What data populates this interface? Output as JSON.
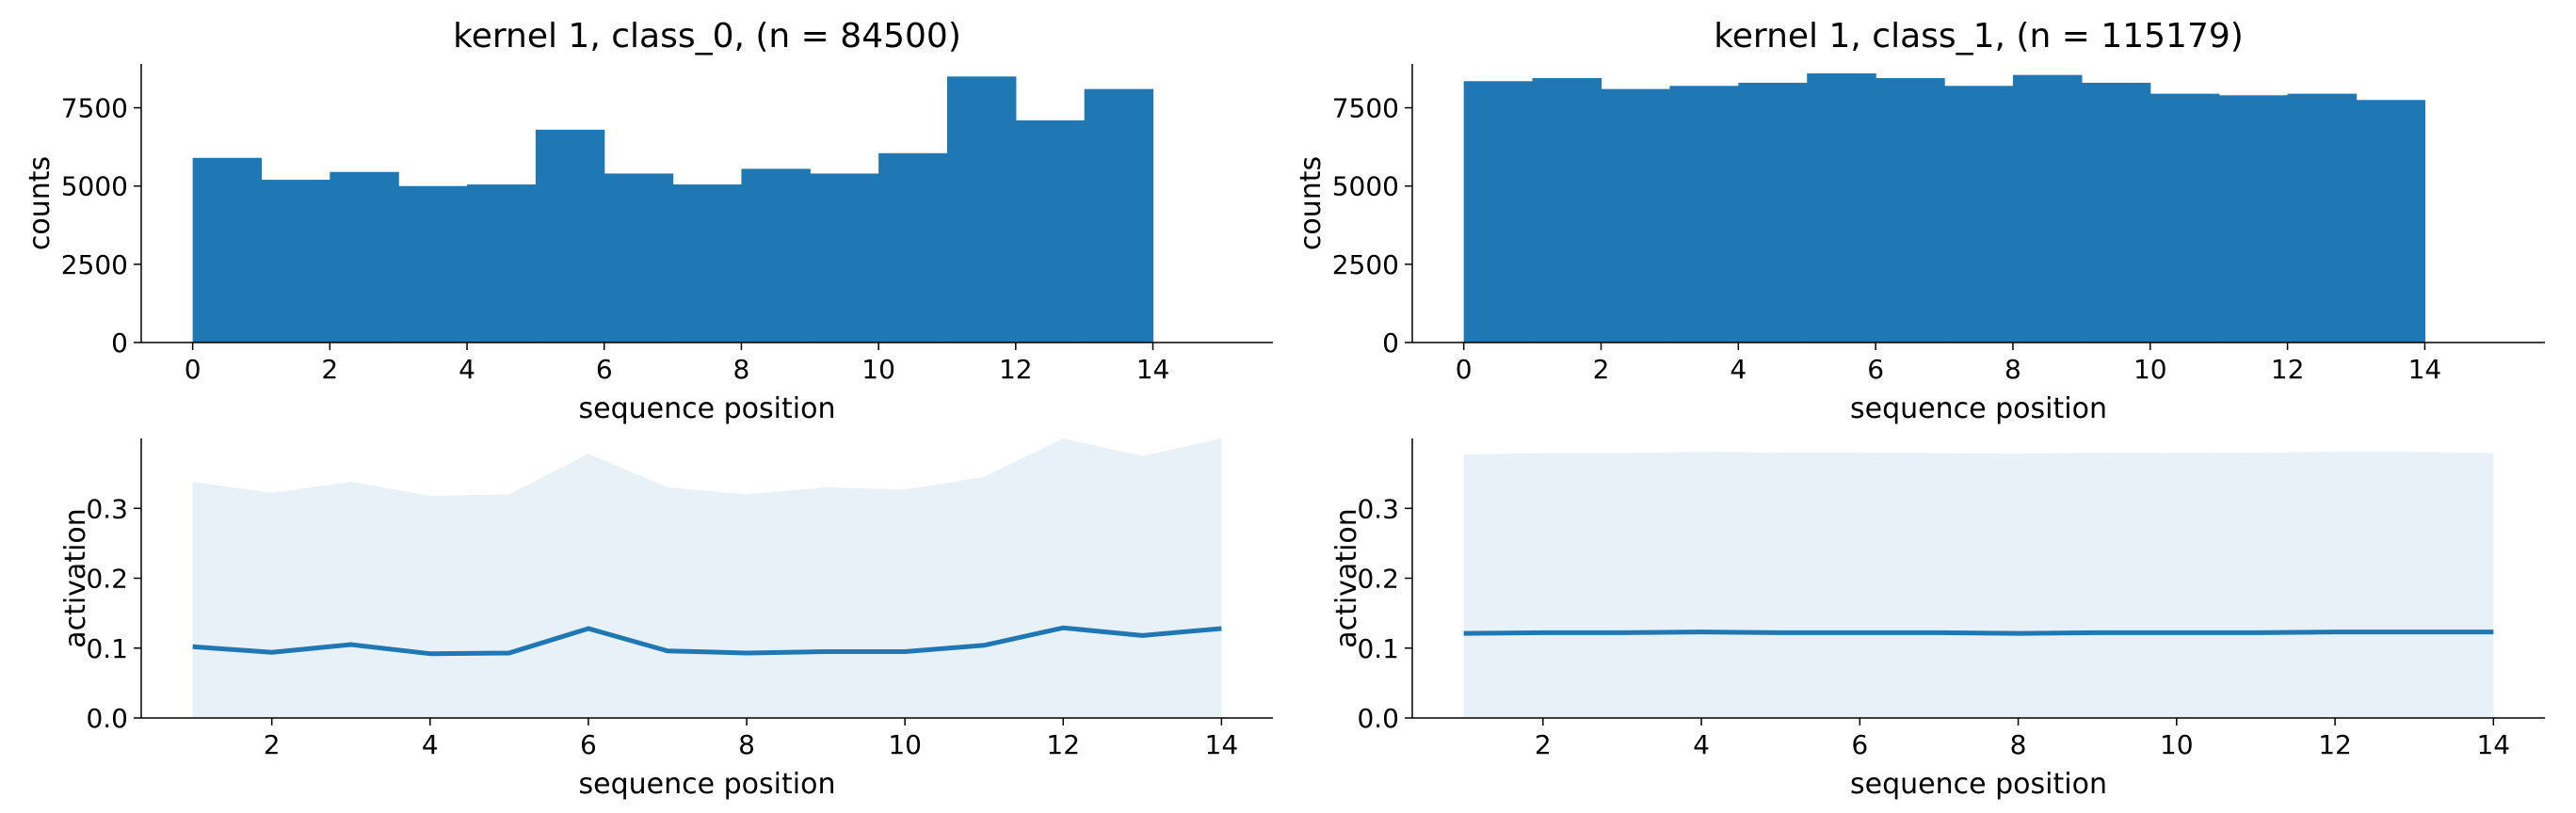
{
  "chart_data": [
    {
      "type": "bar",
      "title": "kernel 1, class_0, (n = 84500)",
      "xlabel": "sequence position",
      "ylabel": "counts",
      "xlim": [
        -0.75,
        15.75
      ],
      "ylim": [
        0,
        8900
      ],
      "xticks": [
        0,
        2,
        4,
        6,
        8,
        10,
        12,
        14
      ],
      "yticks": [
        0,
        2500,
        5000,
        7500
      ],
      "bin_edges": [
        0,
        1,
        2,
        3,
        4,
        5,
        6,
        7,
        8,
        9,
        10,
        11,
        12,
        13,
        14
      ],
      "values": [
        5900,
        5200,
        5450,
        5000,
        5050,
        6800,
        5400,
        5050,
        5550,
        5400,
        6050,
        8500,
        7100,
        8100
      ],
      "color": "#1f77b4"
    },
    {
      "type": "bar",
      "title": "kernel 1, class_1, (n = 115179)",
      "xlabel": "sequence position",
      "ylabel": "counts",
      "xlim": [
        -0.75,
        15.75
      ],
      "ylim": [
        0,
        8900
      ],
      "xticks": [
        0,
        2,
        4,
        6,
        8,
        10,
        12,
        14
      ],
      "yticks": [
        0,
        2500,
        5000,
        7500
      ],
      "bin_edges": [
        0,
        1,
        2,
        3,
        4,
        5,
        6,
        7,
        8,
        9,
        10,
        11,
        12,
        13,
        14
      ],
      "values": [
        8350,
        8450,
        8100,
        8200,
        8300,
        8600,
        8450,
        8200,
        8550,
        8300,
        7950,
        7900,
        7950,
        7750
      ],
      "color": "#1f77b4"
    },
    {
      "type": "area",
      "title": "",
      "xlabel": "sequence position",
      "ylabel": "activation",
      "xlim": [
        0.35,
        14.65
      ],
      "ylim": [
        0,
        0.4
      ],
      "xticks": [
        2,
        4,
        6,
        8,
        10,
        12,
        14
      ],
      "yticks": [
        0.0,
        0.1,
        0.2,
        0.3
      ],
      "x": [
        1,
        2,
        3,
        4,
        5,
        6,
        7,
        8,
        9,
        10,
        11,
        12,
        13,
        14
      ],
      "series": [
        {
          "role": "mean",
          "values": [
            0.102,
            0.094,
            0.105,
            0.092,
            0.093,
            0.128,
            0.096,
            0.093,
            0.095,
            0.095,
            0.104,
            0.129,
            0.118,
            0.128
          ]
        },
        {
          "role": "upper",
          "values": [
            0.338,
            0.322,
            0.338,
            0.318,
            0.32,
            0.378,
            0.33,
            0.32,
            0.33,
            0.327,
            0.345,
            0.4,
            0.375,
            0.4
          ]
        },
        {
          "role": "lower",
          "values": [
            0,
            0,
            0,
            0,
            0,
            0,
            0,
            0,
            0,
            0,
            0,
            0,
            0,
            0
          ]
        }
      ],
      "line_color": "#1f77b4",
      "fill_color": "#e8f0f8"
    },
    {
      "type": "area",
      "title": "",
      "xlabel": "sequence position",
      "ylabel": "activation",
      "xlim": [
        0.35,
        14.65
      ],
      "ylim": [
        0,
        0.4
      ],
      "xticks": [
        2,
        4,
        6,
        8,
        10,
        12,
        14
      ],
      "yticks": [
        0.0,
        0.1,
        0.2,
        0.3
      ],
      "x": [
        1,
        2,
        3,
        4,
        5,
        6,
        7,
        8,
        9,
        10,
        11,
        12,
        13,
        14
      ],
      "series": [
        {
          "role": "mean",
          "values": [
            0.121,
            0.122,
            0.122,
            0.123,
            0.122,
            0.122,
            0.122,
            0.121,
            0.122,
            0.122,
            0.122,
            0.123,
            0.123,
            0.123
          ]
        },
        {
          "role": "upper",
          "values": [
            0.377,
            0.379,
            0.379,
            0.381,
            0.38,
            0.38,
            0.379,
            0.378,
            0.38,
            0.379,
            0.38,
            0.381,
            0.381,
            0.379
          ]
        },
        {
          "role": "lower",
          "values": [
            0,
            0,
            0,
            0,
            0,
            0,
            0,
            0,
            0,
            0,
            0,
            0,
            0,
            0
          ]
        }
      ],
      "line_color": "#1f77b4",
      "fill_color": "#e8f0f8"
    }
  ]
}
